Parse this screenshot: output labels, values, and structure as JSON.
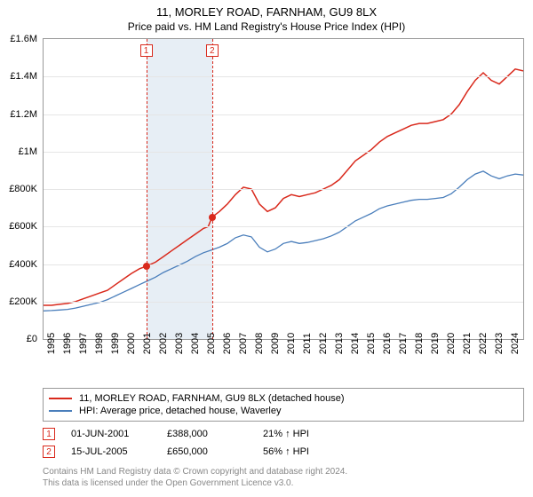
{
  "title": "11, MORLEY ROAD, FARNHAM, GU9 8LX",
  "subtitle": "Price paid vs. HM Land Registry's House Price Index (HPI)",
  "chart": {
    "type": "line",
    "background_color": "#ffffff",
    "border_color": "#999999",
    "grid_color": "#e5e5e5",
    "ylim": [
      0,
      1600000
    ],
    "ytick_step": 200000,
    "y_ticks": [
      "£0",
      "£200K",
      "£400K",
      "£600K",
      "£800K",
      "£1M",
      "£1.2M",
      "£1.4M",
      "£1.6M"
    ],
    "xlim": [
      1995,
      2025
    ],
    "x_ticks": [
      "1995",
      "1996",
      "1997",
      "1998",
      "1999",
      "2000",
      "2001",
      "2002",
      "2003",
      "2004",
      "2005",
      "2006",
      "2007",
      "2008",
      "2009",
      "2010",
      "2011",
      "2012",
      "2013",
      "2014",
      "2015",
      "2016",
      "2017",
      "2018",
      "2019",
      "2020",
      "2021",
      "2022",
      "2023",
      "2024"
    ],
    "series": [
      {
        "name": "11, MORLEY ROAD, FARNHAM, GU9 8LX (detached house)",
        "color": "#d9291c",
        "line_width": 1.5,
        "data": [
          [
            1995,
            180000
          ],
          [
            1995.5,
            180000
          ],
          [
            1996,
            185000
          ],
          [
            1996.5,
            190000
          ],
          [
            1997,
            200000
          ],
          [
            1997.5,
            215000
          ],
          [
            1998,
            230000
          ],
          [
            1998.5,
            245000
          ],
          [
            1999,
            260000
          ],
          [
            1999.5,
            290000
          ],
          [
            2000,
            320000
          ],
          [
            2000.5,
            350000
          ],
          [
            2001,
            375000
          ],
          [
            2001.42,
            388000
          ],
          [
            2002,
            410000
          ],
          [
            2002.5,
            440000
          ],
          [
            2003,
            470000
          ],
          [
            2003.5,
            500000
          ],
          [
            2004,
            530000
          ],
          [
            2004.5,
            560000
          ],
          [
            2005,
            590000
          ],
          [
            2005.3,
            600000
          ],
          [
            2005.54,
            650000
          ],
          [
            2006,
            680000
          ],
          [
            2006.5,
            720000
          ],
          [
            2007,
            770000
          ],
          [
            2007.5,
            810000
          ],
          [
            2008,
            800000
          ],
          [
            2008.5,
            720000
          ],
          [
            2009,
            680000
          ],
          [
            2009.5,
            700000
          ],
          [
            2010,
            750000
          ],
          [
            2010.5,
            770000
          ],
          [
            2011,
            760000
          ],
          [
            2011.5,
            770000
          ],
          [
            2012,
            780000
          ],
          [
            2012.5,
            800000
          ],
          [
            2013,
            820000
          ],
          [
            2013.5,
            850000
          ],
          [
            2014,
            900000
          ],
          [
            2014.5,
            950000
          ],
          [
            2015,
            980000
          ],
          [
            2015.5,
            1010000
          ],
          [
            2016,
            1050000
          ],
          [
            2016.5,
            1080000
          ],
          [
            2017,
            1100000
          ],
          [
            2017.5,
            1120000
          ],
          [
            2018,
            1140000
          ],
          [
            2018.5,
            1150000
          ],
          [
            2019,
            1150000
          ],
          [
            2019.5,
            1160000
          ],
          [
            2020,
            1170000
          ],
          [
            2020.5,
            1200000
          ],
          [
            2021,
            1250000
          ],
          [
            2021.5,
            1320000
          ],
          [
            2022,
            1380000
          ],
          [
            2022.5,
            1420000
          ],
          [
            2023,
            1380000
          ],
          [
            2023.5,
            1360000
          ],
          [
            2024,
            1400000
          ],
          [
            2024.5,
            1440000
          ],
          [
            2025,
            1430000
          ]
        ]
      },
      {
        "name": "HPI: Average price, detached house, Waverley",
        "color": "#4a7ebb",
        "line_width": 1.3,
        "data": [
          [
            1995,
            150000
          ],
          [
            1995.5,
            152000
          ],
          [
            1996,
            155000
          ],
          [
            1996.5,
            158000
          ],
          [
            1997,
            165000
          ],
          [
            1997.5,
            175000
          ],
          [
            1998,
            185000
          ],
          [
            1998.5,
            195000
          ],
          [
            1999,
            210000
          ],
          [
            1999.5,
            230000
          ],
          [
            2000,
            250000
          ],
          [
            2000.5,
            270000
          ],
          [
            2001,
            290000
          ],
          [
            2001.5,
            310000
          ],
          [
            2002,
            330000
          ],
          [
            2002.5,
            355000
          ],
          [
            2003,
            375000
          ],
          [
            2003.5,
            395000
          ],
          [
            2004,
            415000
          ],
          [
            2004.5,
            440000
          ],
          [
            2005,
            460000
          ],
          [
            2005.5,
            475000
          ],
          [
            2006,
            490000
          ],
          [
            2006.5,
            510000
          ],
          [
            2007,
            540000
          ],
          [
            2007.5,
            555000
          ],
          [
            2008,
            545000
          ],
          [
            2008.5,
            490000
          ],
          [
            2009,
            465000
          ],
          [
            2009.5,
            480000
          ],
          [
            2010,
            510000
          ],
          [
            2010.5,
            520000
          ],
          [
            2011,
            510000
          ],
          [
            2011.5,
            515000
          ],
          [
            2012,
            525000
          ],
          [
            2012.5,
            535000
          ],
          [
            2013,
            550000
          ],
          [
            2013.5,
            570000
          ],
          [
            2014,
            600000
          ],
          [
            2014.5,
            630000
          ],
          [
            2015,
            650000
          ],
          [
            2015.5,
            670000
          ],
          [
            2016,
            695000
          ],
          [
            2016.5,
            710000
          ],
          [
            2017,
            720000
          ],
          [
            2017.5,
            730000
          ],
          [
            2018,
            740000
          ],
          [
            2018.5,
            745000
          ],
          [
            2019,
            745000
          ],
          [
            2019.5,
            750000
          ],
          [
            2020,
            755000
          ],
          [
            2020.5,
            775000
          ],
          [
            2021,
            810000
          ],
          [
            2021.5,
            850000
          ],
          [
            2022,
            880000
          ],
          [
            2022.5,
            895000
          ],
          [
            2023,
            870000
          ],
          [
            2023.5,
            855000
          ],
          [
            2024,
            870000
          ],
          [
            2024.5,
            880000
          ],
          [
            2025,
            875000
          ]
        ]
      }
    ],
    "sale_markers": [
      {
        "id": "1",
        "x": 2001.42,
        "price": 388000,
        "shade_start": 2001.42,
        "shade_end": 2003.2
      },
      {
        "id": "2",
        "x": 2005.54,
        "price": 650000,
        "shade_start": 2003.2,
        "shade_end": 2005.54
      }
    ],
    "marker_box_color": "#d9291c",
    "sale_point_color": "#d9291c",
    "shade_color": "#e7eef5"
  },
  "legend": {
    "items": [
      {
        "color": "#d9291c",
        "label": "11, MORLEY ROAD, FARNHAM, GU9 8LX (detached house)"
      },
      {
        "color": "#4a7ebb",
        "label": "HPI: Average price, detached house, Waverley"
      }
    ]
  },
  "sales_table": {
    "rows": [
      {
        "id": "1",
        "date": "01-JUN-2001",
        "price": "£388,000",
        "change": "21% ↑ HPI"
      },
      {
        "id": "2",
        "date": "15-JUL-2005",
        "price": "£650,000",
        "change": "56% ↑ HPI"
      }
    ]
  },
  "footer": {
    "line1": "Contains HM Land Registry data © Crown copyright and database right 2024.",
    "line2": "This data is licensed under the Open Government Licence v3.0."
  }
}
